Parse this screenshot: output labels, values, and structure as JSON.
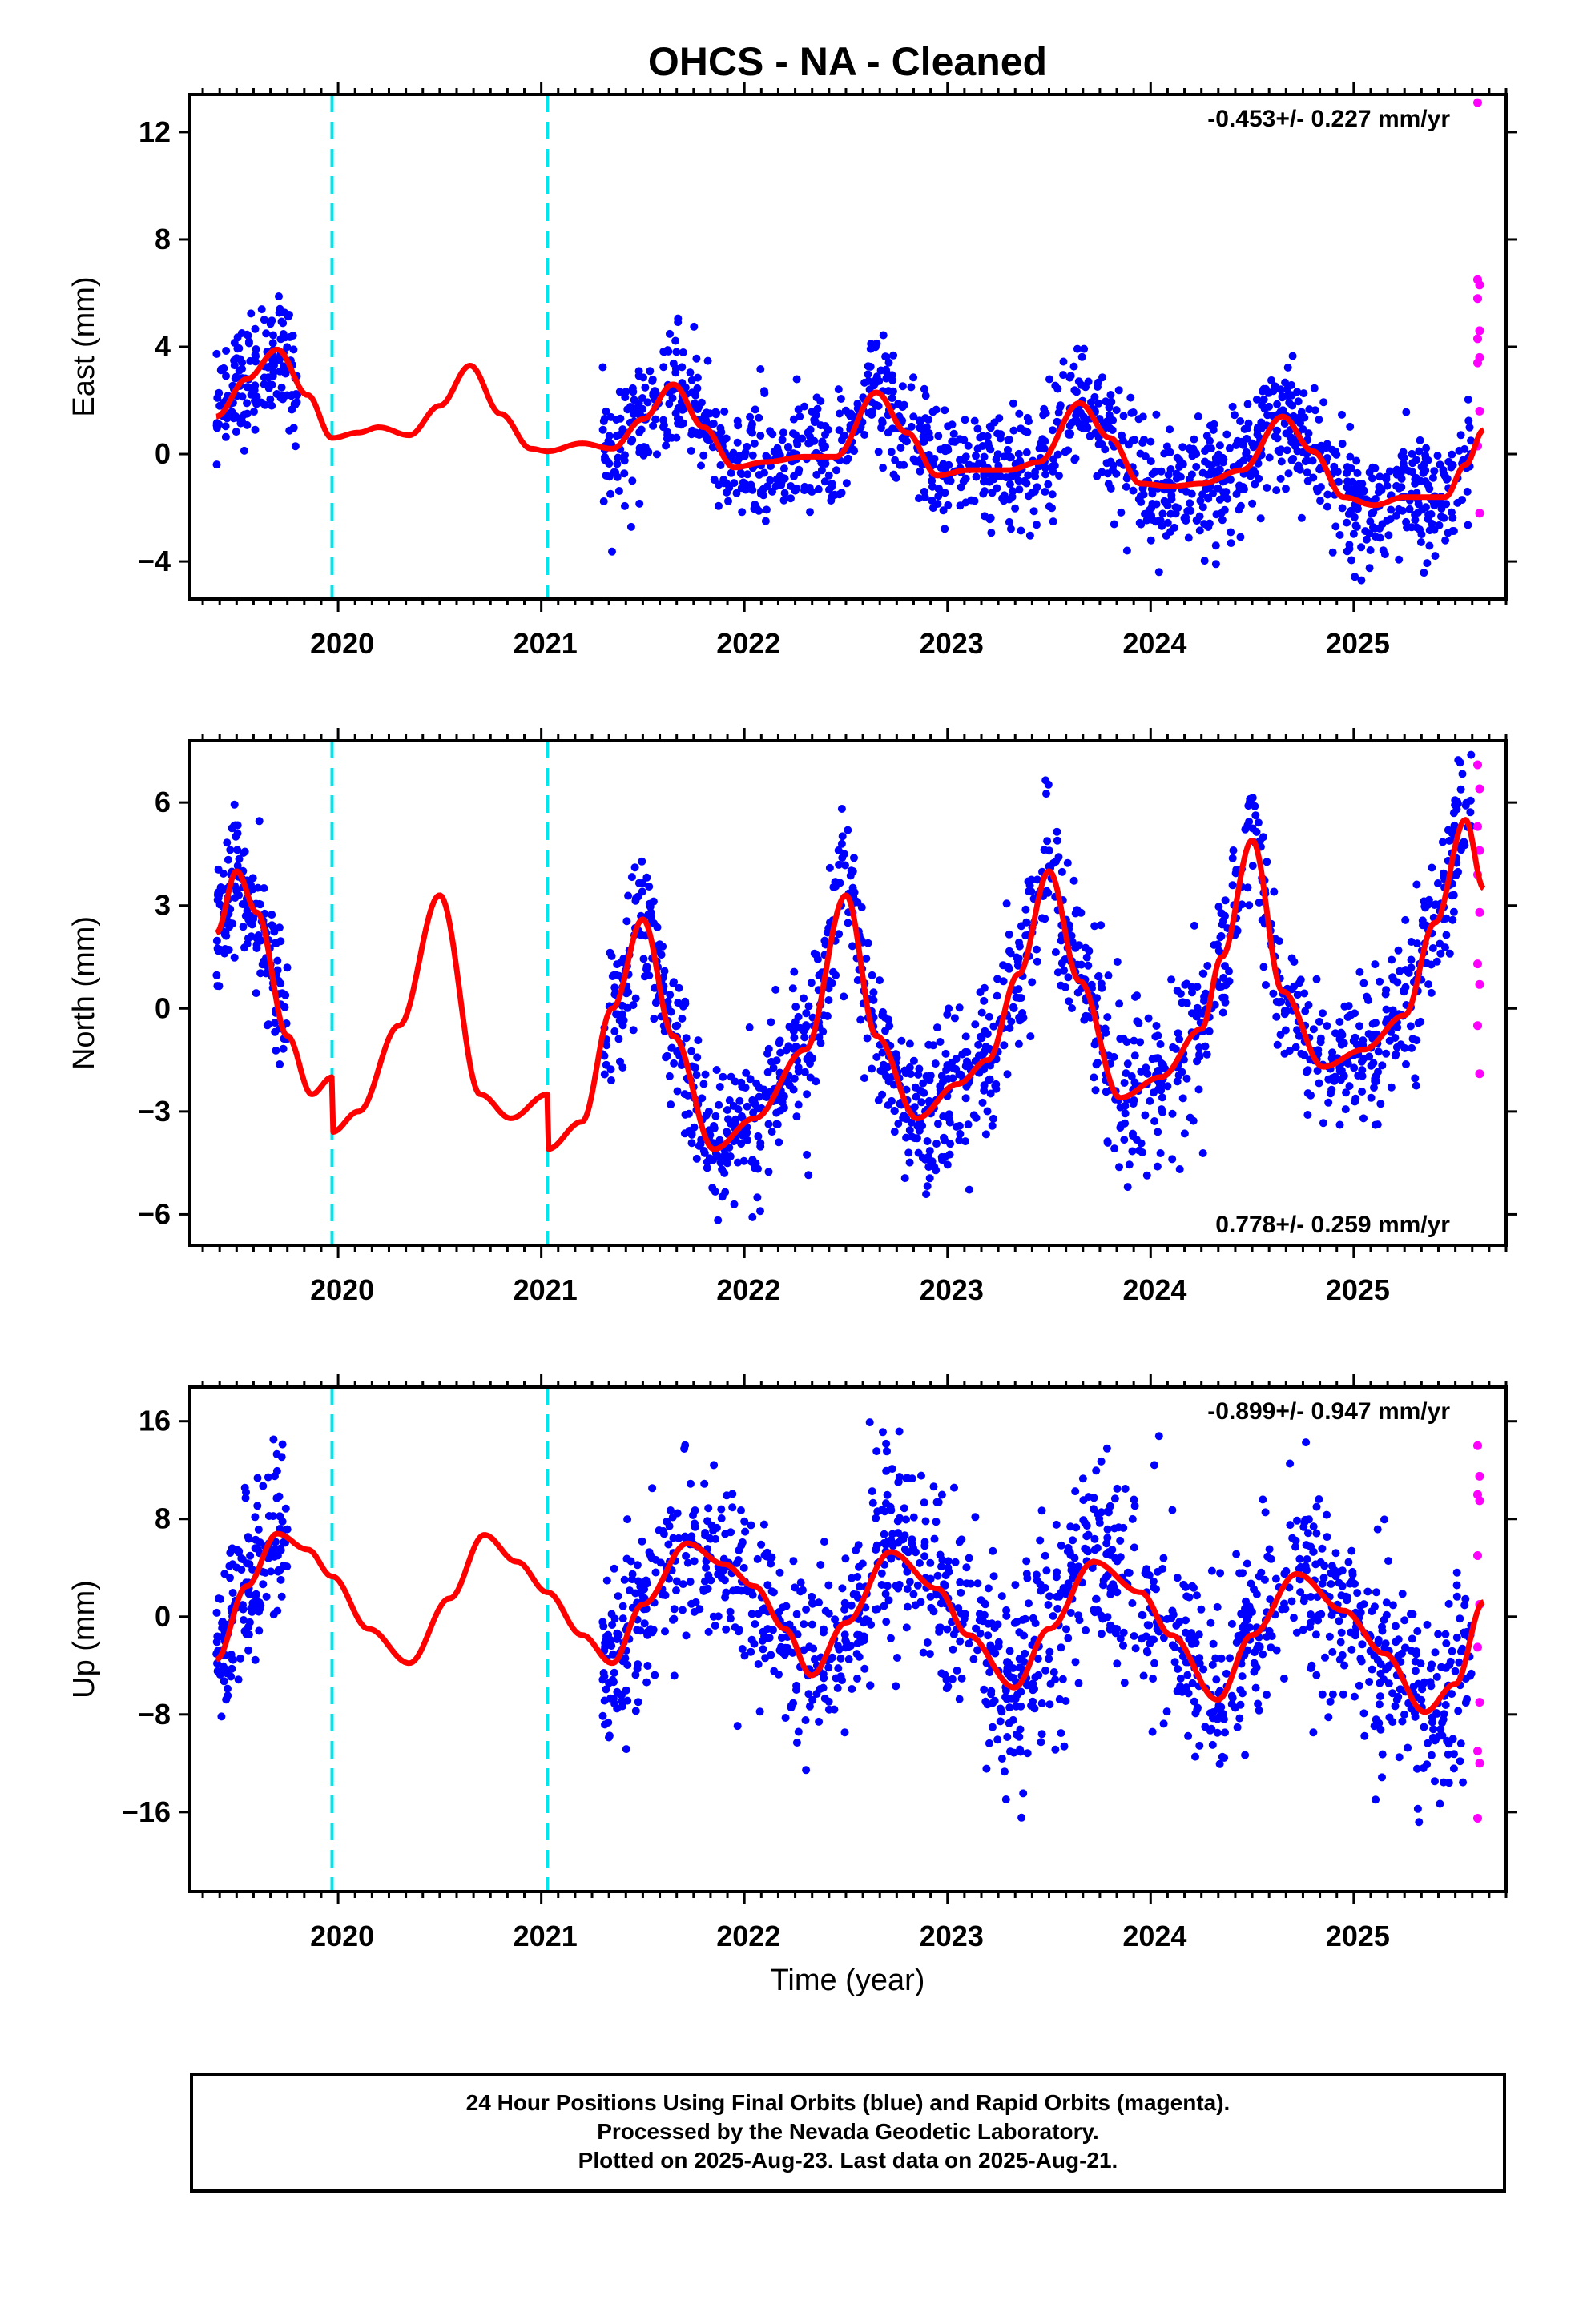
{
  "title": "OHCS  - NA - Cleaned",
  "xlabel": "Time (year)",
  "footer": {
    "line1": "24 Hour Positions Using Final Orbits (blue) and Rapid Orbits (magenta).",
    "line2": "Processed by the Nevada Geodetic Laboratory.",
    "line3": "Plotted on 2025-Aug-23. Last data on 2025-Aug-21."
  },
  "colors": {
    "final_orbits": "#0000ff",
    "rapid_orbits": "#ff00ff",
    "model": "#ff0000",
    "steps": "#00e5ee"
  },
  "chart_data": [
    {
      "type": "scatter",
      "component": "East",
      "ylabel": "East (mm)",
      "rate_label": "-0.453+/- 0.227 mm/yr",
      "xlim": [
        2019.27,
        2025.75
      ],
      "ylim": [
        -5.4,
        13.4
      ],
      "xticks": [
        2020,
        2021,
        2022,
        2023,
        2024,
        2025
      ],
      "yticks": [
        -4,
        0,
        4,
        8,
        12
      ],
      "steps": [
        2019.97,
        2021.03
      ],
      "model_knots": [
        [
          2019.4,
          1.4
        ],
        [
          2019.55,
          2.8
        ],
        [
          2019.7,
          3.9
        ],
        [
          2019.85,
          2.2
        ],
        [
          2019.97,
          0.6
        ],
        [
          2020.1,
          0.8
        ],
        [
          2020.2,
          1.0
        ],
        [
          2020.35,
          0.7
        ],
        [
          2020.5,
          1.8
        ],
        [
          2020.65,
          3.3
        ],
        [
          2020.8,
          1.5
        ],
        [
          2020.95,
          0.2
        ],
        [
          2021.03,
          0.1
        ],
        [
          2021.2,
          0.4
        ],
        [
          2021.35,
          0.2
        ],
        [
          2021.5,
          1.3
        ],
        [
          2021.65,
          2.6
        ],
        [
          2021.8,
          1.0
        ],
        [
          2021.95,
          -0.5
        ],
        [
          2022.1,
          -0.3
        ],
        [
          2022.3,
          -0.1
        ],
        [
          2022.45,
          -0.1
        ],
        [
          2022.65,
          2.3
        ],
        [
          2022.8,
          0.8
        ],
        [
          2022.95,
          -0.8
        ],
        [
          2023.1,
          -0.6
        ],
        [
          2023.3,
          -0.6
        ],
        [
          2023.45,
          -0.3
        ],
        [
          2023.65,
          1.9
        ],
        [
          2023.8,
          0.6
        ],
        [
          2023.95,
          -1.1
        ],
        [
          2024.1,
          -1.2
        ],
        [
          2024.25,
          -1.1
        ],
        [
          2024.45,
          -0.6
        ],
        [
          2024.65,
          1.4
        ],
        [
          2024.8,
          0.1
        ],
        [
          2024.95,
          -1.6
        ],
        [
          2025.1,
          -1.9
        ],
        [
          2025.25,
          -1.6
        ],
        [
          2025.45,
          -1.6
        ],
        [
          2025.55,
          -0.4
        ],
        [
          2025.64,
          0.9
        ]
      ],
      "blue_segments": [
        {
          "x0": 2019.4,
          "x1": 2019.8,
          "n": 160,
          "spread": 1.1
        },
        {
          "x0": 2021.3,
          "x1": 2025.58,
          "n": 1400,
          "spread": 1.1
        }
      ],
      "magenta_points": [
        [
          2025.61,
          13.1
        ],
        [
          2025.61,
          6.5
        ],
        [
          2025.62,
          6.3
        ],
        [
          2025.61,
          5.8
        ],
        [
          2025.62,
          4.6
        ],
        [
          2025.61,
          4.3
        ],
        [
          2025.62,
          3.6
        ],
        [
          2025.61,
          3.4
        ],
        [
          2025.62,
          1.6
        ],
        [
          2025.61,
          0.3
        ],
        [
          2025.62,
          -2.2
        ]
      ]
    },
    {
      "type": "scatter",
      "component": "North",
      "ylabel": "North (mm)",
      "rate_label": "0.778+/- 0.259 mm/yr",
      "xlim": [
        2019.27,
        2025.75
      ],
      "ylim": [
        -6.9,
        7.8
      ],
      "xticks": [
        2020,
        2021,
        2022,
        2023,
        2024,
        2025
      ],
      "yticks": [
        -6,
        -3,
        0,
        3,
        6
      ],
      "steps": [
        2019.97,
        2021.03
      ],
      "model_knots": [
        [
          2019.4,
          2.2
        ],
        [
          2019.5,
          4.0
        ],
        [
          2019.6,
          2.8
        ],
        [
          2019.75,
          -0.8
        ],
        [
          2019.87,
          -2.5
        ],
        [
          2019.97,
          -2.0
        ],
        [
          2019.971,
          -3.6
        ],
        [
          2020.1,
          -3.0
        ],
        [
          2020.3,
          -0.5
        ],
        [
          2020.5,
          3.3
        ],
        [
          2020.7,
          -2.5
        ],
        [
          2020.85,
          -3.2
        ],
        [
          2021.03,
          -2.5
        ],
        [
          2021.031,
          -4.1
        ],
        [
          2021.2,
          -3.3
        ],
        [
          2021.35,
          0.0
        ],
        [
          2021.5,
          2.6
        ],
        [
          2021.65,
          -0.8
        ],
        [
          2021.85,
          -4.1
        ],
        [
          2022.05,
          -3.2
        ],
        [
          2022.3,
          -1.2
        ],
        [
          2022.5,
          3.3
        ],
        [
          2022.65,
          -0.8
        ],
        [
          2022.85,
          -3.2
        ],
        [
          2023.05,
          -2.2
        ],
        [
          2023.2,
          -1.5
        ],
        [
          2023.35,
          1.0
        ],
        [
          2023.5,
          4.0
        ],
        [
          2023.65,
          0.8
        ],
        [
          2023.85,
          -2.6
        ],
        [
          2024.05,
          -2.0
        ],
        [
          2024.25,
          -0.6
        ],
        [
          2024.35,
          1.5
        ],
        [
          2024.5,
          4.9
        ],
        [
          2024.65,
          0.5
        ],
        [
          2024.85,
          -1.7
        ],
        [
          2025.05,
          -1.2
        ],
        [
          2025.25,
          -0.2
        ],
        [
          2025.4,
          2.5
        ],
        [
          2025.55,
          5.5
        ],
        [
          2025.64,
          3.5
        ]
      ],
      "blue_segments": [
        {
          "x0": 2019.4,
          "x1": 2019.75,
          "n": 160,
          "spread": 1.0
        },
        {
          "x0": 2021.3,
          "x1": 2025.58,
          "n": 1400,
          "spread": 1.1
        }
      ],
      "magenta_points": [
        [
          2025.61,
          7.1
        ],
        [
          2025.62,
          6.4
        ],
        [
          2025.61,
          5.3
        ],
        [
          2025.62,
          4.6
        ],
        [
          2025.61,
          3.9
        ],
        [
          2025.62,
          2.8
        ],
        [
          2025.61,
          1.3
        ],
        [
          2025.62,
          0.7
        ],
        [
          2025.61,
          -0.5
        ],
        [
          2025.62,
          -1.9
        ]
      ]
    },
    {
      "type": "scatter",
      "component": "Up",
      "ylabel": "Up (mm)",
      "rate_label": "-0.899+/- 0.947 mm/yr",
      "xlim": [
        2019.27,
        2025.75
      ],
      "ylim": [
        -22.5,
        18.8
      ],
      "xticks": [
        2020,
        2021,
        2022,
        2023,
        2024,
        2025
      ],
      "yticks": [
        -16,
        -8,
        0,
        8,
        16
      ],
      "steps": [
        2019.97,
        2021.03
      ],
      "model_knots": [
        [
          2019.4,
          -3.5
        ],
        [
          2019.55,
          2.5
        ],
        [
          2019.7,
          6.8
        ],
        [
          2019.85,
          5.5
        ],
        [
          2019.97,
          3.3
        ],
        [
          2020.15,
          -1.0
        ],
        [
          2020.35,
          -3.8
        ],
        [
          2020.55,
          1.5
        ],
        [
          2020.72,
          6.7
        ],
        [
          2020.88,
          4.5
        ],
        [
          2021.03,
          2.0
        ],
        [
          2021.2,
          -1.5
        ],
        [
          2021.35,
          -3.8
        ],
        [
          2021.5,
          1.0
        ],
        [
          2021.72,
          6.0
        ],
        [
          2021.9,
          4.3
        ],
        [
          2022.05,
          2.5
        ],
        [
          2022.2,
          -1.0
        ],
        [
          2022.33,
          -4.8
        ],
        [
          2022.5,
          -0.5
        ],
        [
          2022.72,
          5.3
        ],
        [
          2022.95,
          2.3
        ],
        [
          2023.1,
          -1.5
        ],
        [
          2023.33,
          -5.8
        ],
        [
          2023.5,
          -1.0
        ],
        [
          2023.72,
          4.5
        ],
        [
          2023.95,
          2.0
        ],
        [
          2024.1,
          -1.5
        ],
        [
          2024.33,
          -6.8
        ],
        [
          2024.5,
          -1.5
        ],
        [
          2024.72,
          3.5
        ],
        [
          2024.95,
          0.5
        ],
        [
          2025.15,
          -3.0
        ],
        [
          2025.35,
          -7.8
        ],
        [
          2025.5,
          -5.5
        ],
        [
          2025.64,
          1.2
        ]
      ],
      "blue_segments": [
        {
          "x0": 2019.4,
          "x1": 2019.75,
          "n": 160,
          "spread": 3.5
        },
        {
          "x0": 2021.3,
          "x1": 2025.58,
          "n": 1400,
          "spread": 4.0
        }
      ],
      "magenta_points": [
        [
          2025.61,
          14.0
        ],
        [
          2025.62,
          11.5
        ],
        [
          2025.61,
          10.0
        ],
        [
          2025.62,
          9.5
        ],
        [
          2025.61,
          5.0
        ],
        [
          2025.62,
          1.0
        ],
        [
          2025.61,
          -2.5
        ],
        [
          2025.62,
          -7.0
        ],
        [
          2025.61,
          -11.0
        ],
        [
          2025.62,
          -12.0
        ],
        [
          2025.61,
          -16.5
        ]
      ]
    }
  ]
}
